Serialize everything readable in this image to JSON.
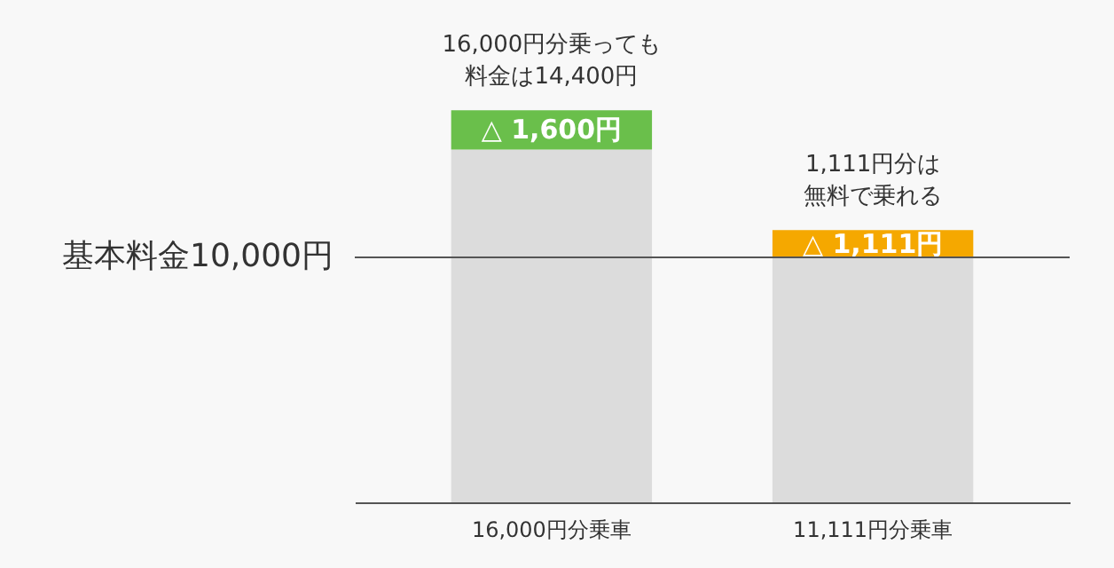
{
  "chart_data": {
    "type": "bar",
    "stacked": true,
    "categories": [
      "16,000円分乗車",
      "11,111円分乗車"
    ],
    "ylim": [
      0,
      20500
    ],
    "tick_labels": "x",
    "series": [
      {
        "color": "#dcdcdc",
        "values": [
          14400,
          10000
        ]
      },
      {
        "colors": [
          "#6abf4b",
          "#f5a800"
        ],
        "values": [
          1600,
          1111
        ],
        "value_labels": [
          "△ 1,600円",
          "△ 1,111円"
        ]
      }
    ],
    "ref_lines": [
      {
        "axis": "y",
        "value": 10000,
        "label": "基本料金10,000円",
        "color": "#555555"
      }
    ],
    "annotations": [
      {
        "text": "16,000円分乗っても",
        "x": "16,000円分乗車",
        "y": 16000
      },
      {
        "text": "料金は14,400円",
        "x": "16,000円分乗車",
        "y": 16000
      },
      {
        "text": "1,111円分は",
        "x": "11,111円分乗車",
        "y": 11111
      },
      {
        "text": "無料で乗れる",
        "x": "11,111円分乗車",
        "y": 11111
      }
    ]
  }
}
